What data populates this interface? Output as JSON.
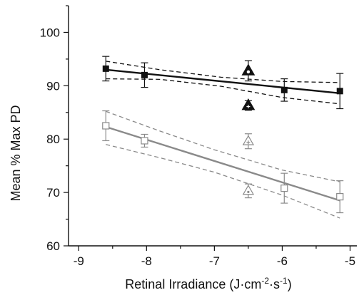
{
  "chart_data": {
    "type": "scatter",
    "xlabel_main": "Retinal Irradiance (J",
    "xlabel_dot": "·",
    "xlabel_cm": "cm",
    "xlabel_exp1": "-2",
    "xlabel_dot2": "·",
    "xlabel_s": "s",
    "xlabel_exp2": "-1",
    "xlabel_close": ")",
    "ylabel": "Mean % Max PD",
    "xlim": [
      -9.15,
      -4.9
    ],
    "ylim": [
      60,
      105
    ],
    "xticks": [
      -9,
      -8,
      -7,
      -6,
      -5
    ],
    "yticks": [
      60,
      70,
      80,
      90,
      100
    ],
    "colors": {
      "dark": "#111111",
      "gray": "#8a8a8a"
    },
    "series": [
      {
        "marker": "filled-square",
        "color": "#111111",
        "points": [
          {
            "x": -8.6,
            "y": 93.2,
            "err": 2.3
          },
          {
            "x": -8.03,
            "y": 92.0,
            "err": 2.3
          },
          {
            "x": -5.97,
            "y": 89.2,
            "err": 2.1
          },
          {
            "x": -5.15,
            "y": 89.0,
            "err": 3.3
          }
        ],
        "fit": {
          "x": [
            -8.6,
            -5.15
          ],
          "y": [
            93.0,
            88.6
          ]
        },
        "ci_upper": [
          [
            -8.6,
            94.6
          ],
          [
            -7.8,
            93.0
          ],
          [
            -6.9,
            91.6
          ],
          [
            -6.0,
            90.8
          ],
          [
            -5.15,
            90.6
          ]
        ],
        "ci_lower": [
          [
            -8.6,
            91.3
          ],
          [
            -7.8,
            91.2
          ],
          [
            -6.9,
            89.9
          ],
          [
            -6.0,
            87.8
          ],
          [
            -5.15,
            86.6
          ]
        ]
      },
      {
        "marker": "open-square",
        "color": "#8a8a8a",
        "points": [
          {
            "x": -8.6,
            "y": 82.5,
            "err": 2.8
          },
          {
            "x": -8.03,
            "y": 79.7,
            "err": 1.2
          },
          {
            "x": -5.97,
            "y": 70.8,
            "err": 2.8
          },
          {
            "x": -5.15,
            "y": 69.2,
            "err": 3.0
          }
        ],
        "fit": {
          "x": [
            -8.6,
            -5.15
          ],
          "y": [
            82.3,
            68.5
          ]
        },
        "ci_upper": [
          [
            -8.6,
            85.2
          ],
          [
            -7.8,
            81.5
          ],
          [
            -7.0,
            78.0
          ],
          [
            -6.0,
            74.2
          ],
          [
            -5.15,
            72.0
          ]
        ],
        "ci_lower": [
          [
            -8.6,
            79.0
          ],
          [
            -7.8,
            76.5
          ],
          [
            -7.0,
            73.8
          ],
          [
            -6.0,
            69.5
          ],
          [
            -5.15,
            65.2
          ]
        ]
      },
      {
        "marker": "triangles-at-minus-6.5",
        "points": [
          {
            "x": -6.5,
            "y": 92.8,
            "err": 1.9,
            "style": "filled-triangle-white-dot",
            "color": "#111111"
          },
          {
            "x": -6.5,
            "y": 86.3,
            "err": 0.9,
            "style": "filled-triangle-white-cross",
            "color": "#111111"
          },
          {
            "x": -6.5,
            "y": 79.6,
            "err": 1.4,
            "style": "open-triangle-cross",
            "color": "#8a8a8a"
          },
          {
            "x": -6.5,
            "y": 70.3,
            "err": 1.3,
            "style": "open-triangle-dot",
            "color": "#8a8a8a"
          }
        ]
      }
    ]
  }
}
